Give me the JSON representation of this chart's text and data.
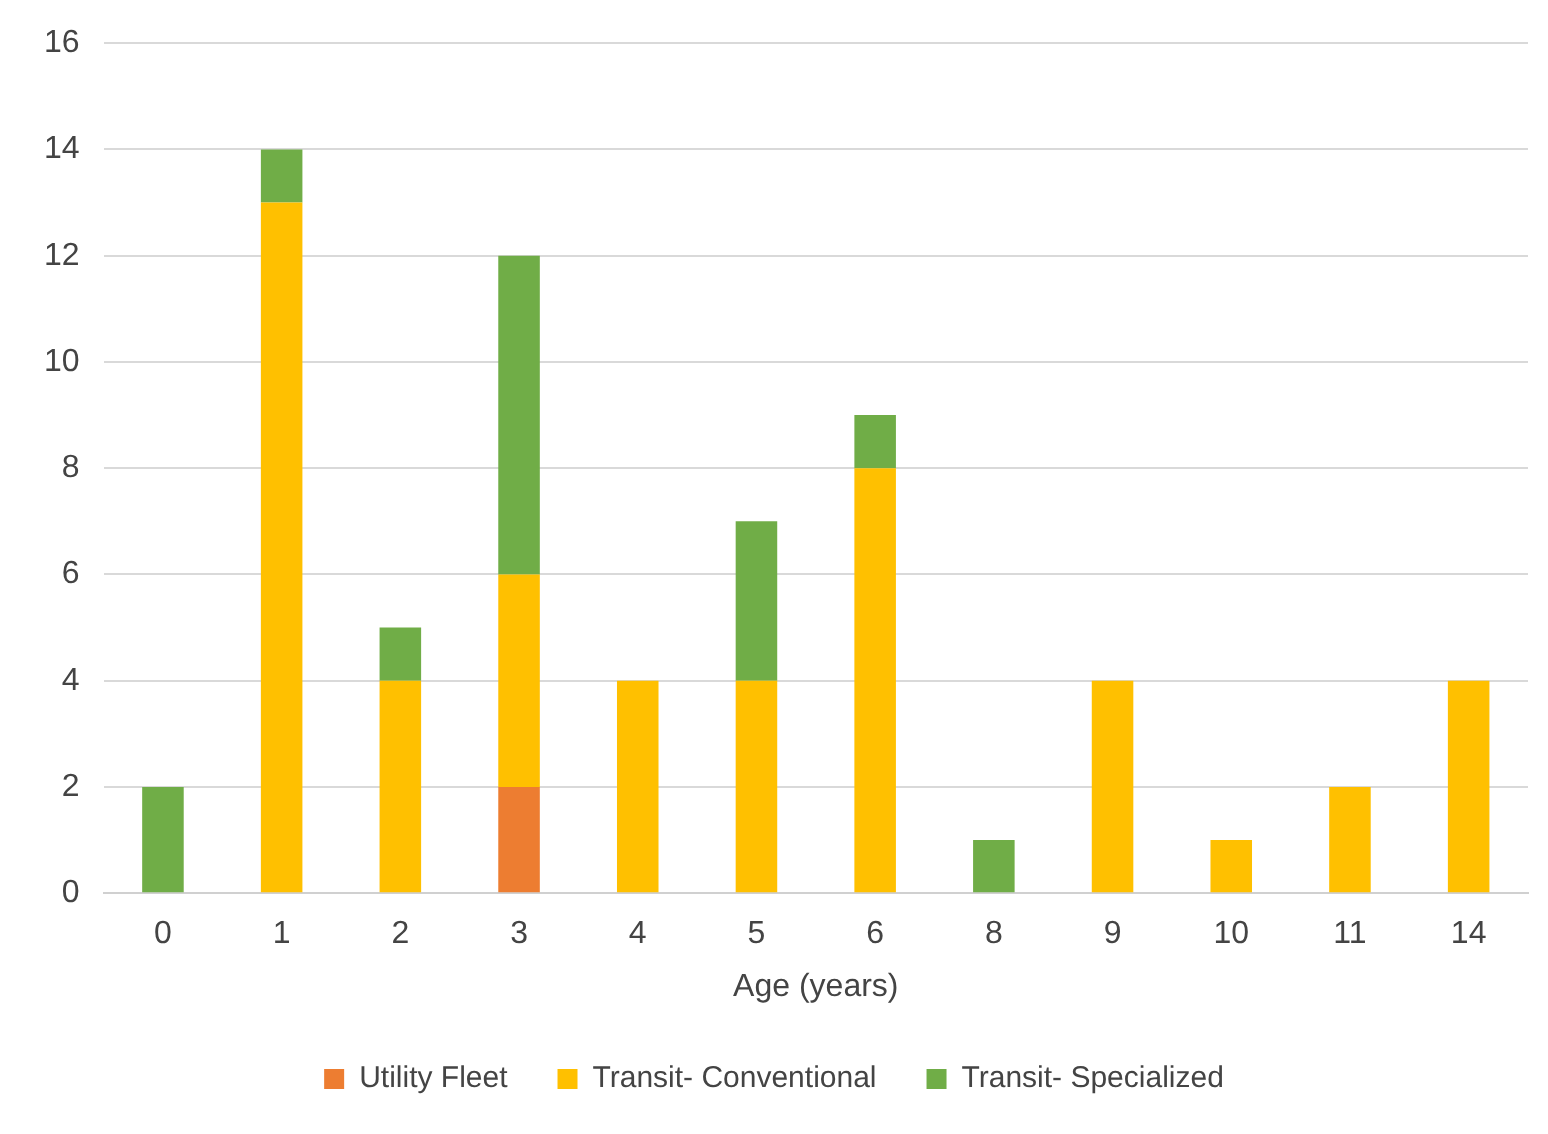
{
  "chart_data": {
    "type": "bar",
    "xlabel": "Age (years)",
    "categories": [
      "0",
      "1",
      "2",
      "3",
      "4",
      "5",
      "6",
      "8",
      "9",
      "10",
      "11",
      "14"
    ],
    "series": [
      {
        "name": "Utility Fleet",
        "color": "#ed7d31",
        "values": [
          0,
          0,
          0,
          2,
          0,
          0,
          0,
          0,
          0,
          0,
          0,
          0
        ]
      },
      {
        "name": "Transit- Conventional",
        "color": "#ffc000",
        "values": [
          0,
          13,
          4,
          4,
          4,
          4,
          8,
          0,
          4,
          1,
          2,
          4
        ]
      },
      {
        "name": "Transit- Specialized",
        "color": "#70ad47",
        "values": [
          2,
          1,
          1,
          6,
          0,
          3,
          1,
          1,
          0,
          0,
          0,
          0
        ]
      }
    ],
    "stacked": true,
    "ylim": [
      0,
      16
    ],
    "yticks": [
      0,
      2,
      4,
      6,
      8,
      10,
      12,
      14,
      16
    ],
    "grid": "y",
    "legend": "bottom"
  }
}
